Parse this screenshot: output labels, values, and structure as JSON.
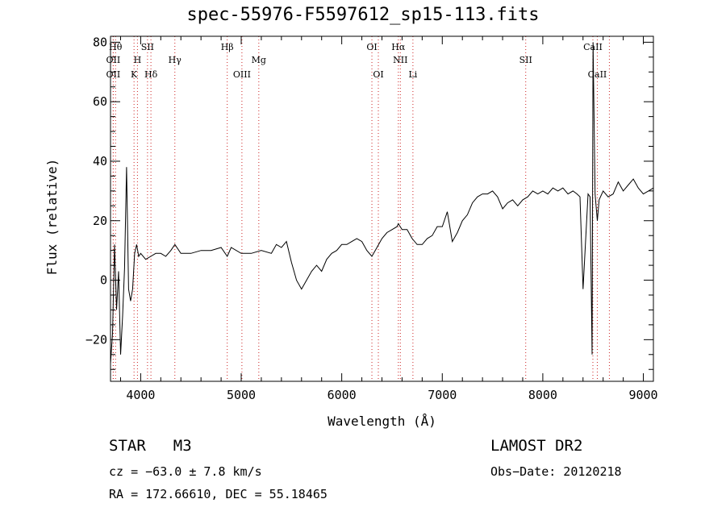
{
  "chart_data": {
    "type": "line",
    "title": "spec-55976-F5597612_sp15-113.fits",
    "xlabel": "Wavelength (Å)",
    "ylabel": "Flux (relative)",
    "xlim": [
      3700,
      9100
    ],
    "ylim": [
      -34,
      82
    ],
    "xticks": [
      4000,
      5000,
      6000,
      7000,
      8000,
      9000
    ],
    "yticks": [
      -20,
      0,
      20,
      40,
      60,
      80
    ],
    "grid": false,
    "line_color": "#000000",
    "marker_color": "#cc2222",
    "series": [
      {
        "x": [
          3700,
          3720,
          3740,
          3760,
          3780,
          3800,
          3820,
          3840,
          3860,
          3880,
          3900,
          3920,
          3940,
          3960,
          3980,
          4000,
          4050,
          4100,
          4150,
          4200,
          4250,
          4300,
          4340,
          4400,
          4500,
          4600,
          4700,
          4800,
          4861,
          4900,
          5000,
          5100,
          5200,
          5300,
          5350,
          5400,
          5450,
          5500,
          5550,
          5600,
          5650,
          5700,
          5750,
          5800,
          5850,
          5900,
          5950,
          6000,
          6050,
          6100,
          6150,
          6200,
          6250,
          6300,
          6350,
          6400,
          6450,
          6500,
          6550,
          6563,
          6600,
          6650,
          6700,
          6750,
          6800,
          6850,
          6900,
          6950,
          7000,
          7050,
          7100,
          7150,
          7200,
          7250,
          7300,
          7350,
          7400,
          7450,
          7500,
          7550,
          7600,
          7650,
          7700,
          7750,
          7800,
          7850,
          7900,
          7950,
          8000,
          8050,
          8100,
          8150,
          8200,
          8250,
          8300,
          8340,
          8370,
          8400,
          8450,
          8470,
          8490,
          8500,
          8520,
          8542,
          8560,
          8600,
          8650,
          8700,
          8750,
          8800,
          8850,
          8900,
          8950,
          9000,
          9050,
          9100
        ],
        "y": [
          -28,
          -18,
          12,
          -10,
          3,
          -25,
          -12,
          4,
          38,
          -3,
          -7,
          -3,
          9,
          12,
          8,
          9,
          7,
          8,
          9,
          9,
          8,
          10,
          12,
          9,
          9,
          10,
          10,
          11,
          8,
          11,
          9,
          9,
          10,
          9,
          12,
          11,
          13,
          6,
          0,
          -3,
          0,
          3,
          5,
          3,
          7,
          9,
          10,
          12,
          12,
          13,
          14,
          13,
          10,
          8,
          11,
          14,
          16,
          17,
          18,
          19,
          17,
          17,
          14,
          12,
          12,
          14,
          15,
          18,
          18,
          23,
          13,
          16,
          20,
          22,
          26,
          28,
          29,
          29,
          30,
          28,
          24,
          26,
          27,
          25,
          27,
          28,
          30,
          29,
          30,
          29,
          31,
          30,
          31,
          29,
          30,
          29,
          28,
          -3,
          29,
          28,
          -25,
          80,
          29,
          20,
          27,
          30,
          28,
          29,
          33,
          30,
          32,
          34,
          31,
          29,
          30,
          31
        ]
      }
    ],
    "markers": [
      {
        "wl": 3750,
        "label": "Hθ",
        "row": 0
      },
      {
        "wl": 3727,
        "label": "OII",
        "row": 1
      },
      {
        "wl": 3727,
        "label": "OII",
        "row": 2
      },
      {
        "wl": 3934,
        "label": "K",
        "row": 2
      },
      {
        "wl": 3968,
        "label": "H",
        "row": 1
      },
      {
        "wl": 4068,
        "label": "SII",
        "row": 0
      },
      {
        "wl": 4102,
        "label": "Hδ",
        "row": 2
      },
      {
        "wl": 4340,
        "label": "Hγ",
        "row": 1
      },
      {
        "wl": 4861,
        "label": "Hβ",
        "row": 0
      },
      {
        "wl": 5007,
        "label": "OIII",
        "row": 2
      },
      {
        "wl": 5175,
        "label": "Mg",
        "row": 1
      },
      {
        "wl": 6300,
        "label": "OI",
        "row": 0
      },
      {
        "wl": 6364,
        "label": "OI",
        "row": 2
      },
      {
        "wl": 6563,
        "label": "Hα",
        "row": 0
      },
      {
        "wl": 6583,
        "label": "NII",
        "row": 1
      },
      {
        "wl": 6708,
        "label": "Li",
        "row": 2
      },
      {
        "wl": 7830,
        "label": "SII",
        "row": 1
      },
      {
        "wl": 8498,
        "label": "CaII",
        "row": 0
      },
      {
        "wl": 8542,
        "label": "CaII",
        "row": 2
      },
      {
        "wl": 8662,
        "label": "",
        "row": -1
      }
    ]
  },
  "info": {
    "class": "STAR",
    "subclass": "M3",
    "survey": "LAMOST DR2",
    "cz": "cz = −63.0 ± 7.8 km/s",
    "obs_date": "Obs−Date: 20120218",
    "radec": "RA = 172.66610, DEC =  55.18465"
  }
}
